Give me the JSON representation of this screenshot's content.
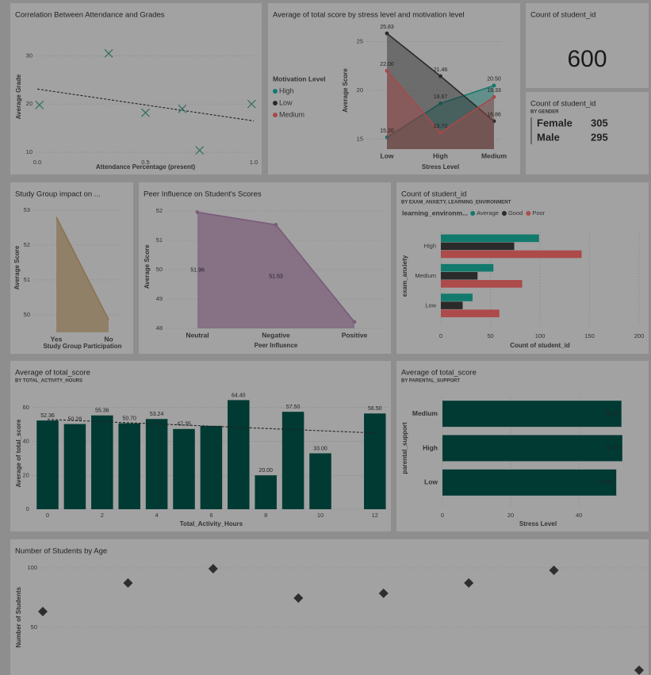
{
  "chart_data": [
    {
      "type": "scatter",
      "title": "Correlation Between Attendance and Grades",
      "x_label": "Attendance Percentage (present)",
      "y_label": "Average Grade",
      "marker": "x",
      "color": "#2f6e60",
      "x": [
        0.01,
        0.33,
        0.5,
        0.67,
        0.75,
        0.99
      ],
      "y": [
        19.8,
        30.5,
        18.2,
        19,
        10.4,
        20
      ],
      "xlim": [
        0,
        1
      ],
      "ylim": [
        9,
        34
      ],
      "xticks": [
        {
          "value": 0,
          "label": "0.0"
        },
        0.5,
        {
          "value": 1,
          "label": "1.0"
        }
      ],
      "yticks": [
        10,
        20,
        30
      ],
      "trendline": {
        "x": [
          0,
          1
        ],
        "y": [
          23.1,
          16.5
        ]
      },
      "grid": true
    },
    {
      "type": "area",
      "title": "Average of total score by stress level and motivation level",
      "x_label": "Stress Level",
      "y_label": "Average Score",
      "legend_title": "Motivation Level",
      "categories": [
        "Low",
        "High",
        "Medium"
      ],
      "series": [
        {
          "name": "High",
          "color": "#15786d",
          "values": [
            15.2,
            18.67,
            20.5
          ],
          "value_labels": [
            "15.20",
            "18.67",
            "20.50"
          ]
        },
        {
          "name": "Low",
          "color": "#2a2a2a",
          "values": [
            25.83,
            21.46,
            16.86
          ],
          "value_labels": [
            "25.83",
            "21.46",
            "16.86"
          ]
        },
        {
          "name": "Medium",
          "color": "#a84848",
          "values": [
            22,
            15.7,
            19.33
          ],
          "value_labels": [
            "22.00",
            "15.70",
            "19.33"
          ]
        }
      ],
      "ylim": [
        14,
        26
      ],
      "yticks": [
        15,
        20,
        25
      ],
      "grid": true
    },
    {
      "type": "kpi",
      "title": "Count of student_id",
      "value": 600
    },
    {
      "type": "kpi-list",
      "title": "Count of student_id",
      "subtitle": "BY GENDER",
      "rows": [
        {
          "label": "Female",
          "value": 305
        },
        {
          "label": "Male",
          "value": 295
        }
      ]
    },
    {
      "type": "area",
      "title": "Study Group impact on ...",
      "x_label": "Study Group Participation",
      "y_label": "Average Score",
      "categories": [
        "Yes",
        "No"
      ],
      "values": [
        52.8,
        49.86
      ],
      "color": "#8a7250",
      "ylim": [
        49.5,
        53.2
      ],
      "yticks": [
        50,
        51,
        52,
        53
      ],
      "grid": true
    },
    {
      "type": "area",
      "title": "Peer Influence on Student's Scores",
      "x_label": "Peer Influence",
      "y_label": "Average Score",
      "categories": [
        "Neutral",
        "Negative",
        "Positive"
      ],
      "values": [
        51.96,
        51.53,
        48.22
      ],
      "value_labels": [
        "51.96",
        "51.53",
        null
      ],
      "color": "#7b5c79",
      "ylim": [
        48,
        52.2
      ],
      "yticks": [
        48,
        49,
        50,
        51,
        52
      ],
      "grid": true
    },
    {
      "type": "hbar",
      "title": "Count of student_id",
      "subtitle": "BY EXAM_ANXIETY, LEARNING_ENVIRONMENT",
      "x_label": "Count of student_id",
      "y_label": "exam_anxiety",
      "legend_title": "learning_environm...",
      "categories": [
        "High",
        "Medium",
        "Low"
      ],
      "series": [
        {
          "name": "Average",
          "color": "#127a6d",
          "values": [
            99,
            53,
            32
          ]
        },
        {
          "name": "Good",
          "color": "#2a2a2a",
          "values": [
            74,
            37,
            22
          ]
        },
        {
          "name": "Poor",
          "color": "#ad4a4a",
          "values": [
            142,
            82,
            59
          ]
        }
      ],
      "xlim": [
        0,
        200
      ],
      "xticks": [
        0,
        50,
        100,
        150,
        200
      ],
      "grid": true
    },
    {
      "type": "bar",
      "title": "Average of total_score",
      "subtitle": "BY TOTAL_ACTIVITY_HOURS",
      "x_label": "Total_Activity_Hours",
      "y_label": "Average of total_score",
      "color": "#003a33",
      "x": [
        0,
        1,
        2,
        3,
        4,
        5,
        6,
        7,
        8,
        9,
        10,
        12
      ],
      "values": [
        52.36,
        50.28,
        55.36,
        50.7,
        53.24,
        47.35,
        49.2,
        64.4,
        20,
        57.5,
        33,
        56.5
      ],
      "value_labels": [
        "52.36",
        "50.28",
        "55.36",
        "50.70",
        "53.24",
        "47.35",
        null,
        "64.40",
        "20.00",
        "57.50",
        "33.00",
        "56.50"
      ],
      "xlim": [
        -0.5,
        12.5
      ],
      "ylim": [
        0,
        66
      ],
      "xticks": [
        0,
        2,
        4,
        6,
        8,
        10,
        12
      ],
      "yticks": [
        0,
        20,
        40,
        60
      ],
      "trendline": {
        "x": [
          0,
          12
        ],
        "y": [
          53,
          45
        ]
      },
      "grid": true
    },
    {
      "type": "hbar",
      "title": "Average of total_score",
      "subtitle": "BY PARENTAL_SUPPORT",
      "x_label": "Stress Level",
      "y_label": "parental_support",
      "categories": [
        "Medium",
        "High",
        "Low"
      ],
      "values": [
        52.44,
        52.7,
        50.93
      ],
      "value_labels": [
        "52.44",
        "52.70",
        "50.93"
      ],
      "color": "#003a33",
      "xlim": [
        0,
        56
      ],
      "xticks": [
        0,
        20,
        40
      ],
      "grid": true
    },
    {
      "type": "scatter",
      "title": "Number of Students by Age",
      "y_label": "Number of Students",
      "marker": "diamond",
      "color": "#2e2e2e",
      "categories": [
        null,
        null,
        null,
        null,
        null,
        null,
        null,
        null
      ],
      "y": [
        63.3,
        87.3,
        99.3,
        74.7,
        78.7,
        87.3,
        98,
        14
      ],
      "ylim": [
        10,
        107
      ],
      "yticks": [
        50,
        100
      ],
      "grid": true
    }
  ]
}
